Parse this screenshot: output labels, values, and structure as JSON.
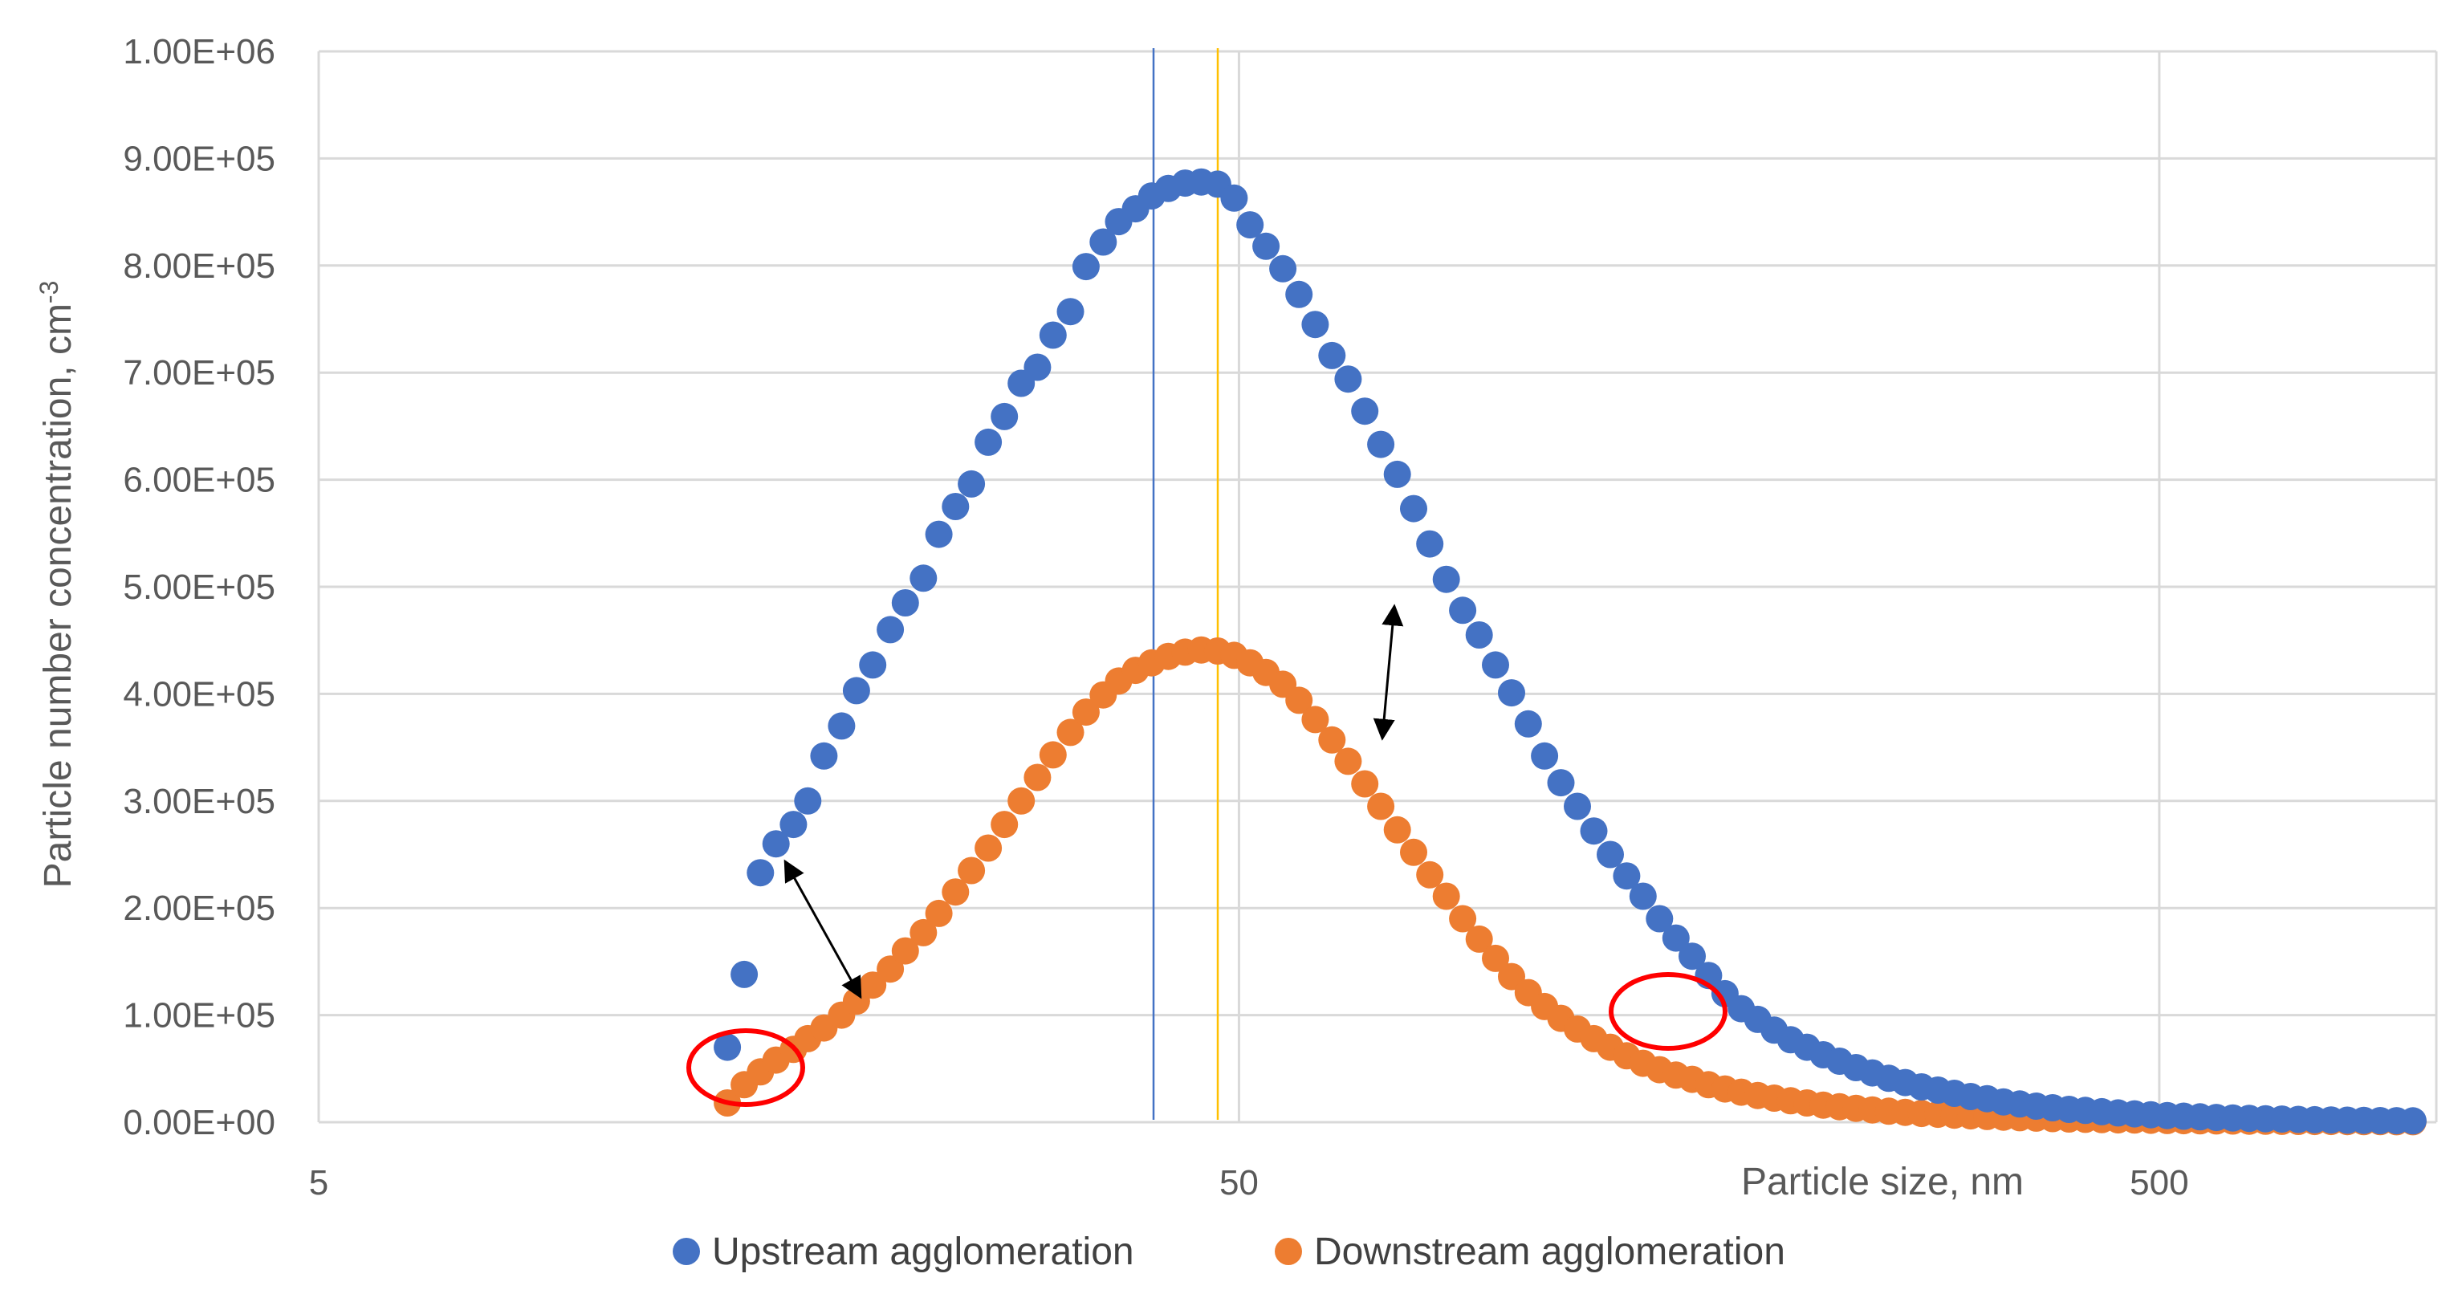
{
  "chart_data": {
    "type": "scatter",
    "xscale": "log",
    "xlim": [
      5,
      1000
    ],
    "ylim": [
      0,
      1000000
    ],
    "grid": true,
    "xlabel": "Particle size, nm",
    "ylabel": "Particle number concentration, cm",
    "ylabel_sup": "-3",
    "x_tick_labels": [
      "5",
      "50",
      "500"
    ],
    "x_ticks": [
      5,
      50,
      500
    ],
    "y_ticks": [
      0,
      100000,
      200000,
      300000,
      400000,
      500000,
      600000,
      700000,
      800000,
      900000,
      1000000
    ],
    "y_tick_labels": [
      "0.00E+00",
      "1.00E+05",
      "2.00E+05",
      "3.00E+05",
      "4.00E+05",
      "5.00E+05",
      "6.00E+05",
      "7.00E+05",
      "8.00E+05",
      "9.00E+05",
      "1.00E+06"
    ],
    "legend_position": "bottom",
    "series": [
      {
        "name": "Upstream agglomeration",
        "color": "#4472C4",
        "x": [
          13.9,
          14.5,
          15.1,
          15.7,
          16.4,
          17.0,
          17.7,
          18.5,
          19.2,
          20.0,
          20.9,
          21.7,
          22.7,
          23.6,
          24.6,
          25.6,
          26.7,
          27.8,
          29.0,
          30.2,
          31.4,
          32.8,
          34.1,
          35.6,
          37.0,
          38.6,
          40.2,
          41.9,
          43.7,
          45.5,
          47.4,
          49.4,
          51.4,
          53.5,
          55.8,
          58.1,
          60.5,
          63.1,
          65.7,
          68.5,
          71.3,
          74.3,
          77.4,
          80.6,
          84.0,
          87.5,
          91.2,
          95.0,
          98.9,
          103.1,
          107.4,
          111.9,
          116.6,
          121.5,
          126.6,
          131.9,
          137.4,
          143.2,
          149.2,
          155.4,
          161.9,
          168.7,
          175.7,
          183.1,
          190.8,
          198.8,
          207.1,
          215.7,
          224.7,
          234.1,
          243.9,
          254.1,
          264.8,
          275.8,
          287.4,
          299.4,
          311.9,
          325.0,
          338.6,
          352.7,
          367.5,
          382.9,
          398.9,
          415.6,
          433.0,
          451.1,
          470.0,
          489.6,
          510.1,
          531.5,
          553.7,
          576.8,
          601.0,
          626.1,
          652.3,
          679.6,
          708.0,
          737.7,
          768.5,
          800.7,
          834.2,
          869.1,
          905.4,
          943.3
        ],
        "y": [
          70000,
          138000,
          233000,
          260000,
          278000,
          300000,
          342000,
          370000,
          403000,
          427000,
          460000,
          485000,
          508000,
          549000,
          575000,
          596000,
          635000,
          659000,
          690000,
          705000,
          735000,
          757000,
          799000,
          822000,
          841000,
          853000,
          865000,
          872000,
          877000,
          878000,
          876000,
          863000,
          838000,
          818000,
          797000,
          773000,
          745000,
          716000,
          694000,
          664000,
          633000,
          605000,
          573000,
          540000,
          507000,
          478000,
          455000,
          427000,
          401000,
          372000,
          342000,
          317000,
          295000,
          272000,
          250000,
          230000,
          211000,
          190000,
          172000,
          155000,
          137000,
          120000,
          106000,
          96000,
          86000,
          77000,
          70000,
          63000,
          57000,
          51000,
          46000,
          41000,
          37000,
          33000,
          30000,
          27000,
          24000,
          22000,
          19000,
          17000,
          15000,
          13500,
          12000,
          11000,
          9800,
          8700,
          7800,
          7000,
          6200,
          5600,
          5000,
          4400,
          4000,
          3600,
          3200,
          2900,
          2600,
          2300,
          2100,
          1900,
          1700,
          1500,
          1400,
          1300
        ]
      },
      {
        "name": "Downstream agglomeration",
        "color": "#ED7D31",
        "x": [
          13.9,
          14.5,
          15.1,
          15.7,
          16.4,
          17.0,
          17.7,
          18.5,
          19.2,
          20.0,
          20.9,
          21.7,
          22.7,
          23.6,
          24.6,
          25.6,
          26.7,
          27.8,
          29.0,
          30.2,
          31.4,
          32.8,
          34.1,
          35.6,
          37.0,
          38.6,
          40.2,
          41.9,
          43.7,
          45.5,
          47.4,
          49.4,
          51.4,
          53.5,
          55.8,
          58.1,
          60.5,
          63.1,
          65.7,
          68.5,
          71.3,
          74.3,
          77.4,
          80.6,
          84.0,
          87.5,
          91.2,
          95.0,
          98.9,
          103.1,
          107.4,
          111.9,
          116.6,
          121.5,
          126.6,
          131.9,
          137.4,
          143.2,
          149.2,
          155.4,
          161.9,
          168.7,
          175.7,
          183.1,
          190.8,
          198.8,
          207.1,
          215.7,
          224.7,
          234.1,
          243.9,
          254.1,
          264.8,
          275.8,
          287.4,
          299.4,
          311.9,
          325.0,
          338.6,
          352.7,
          367.5,
          382.9,
          398.9,
          415.6,
          433.0,
          451.1,
          470.0,
          489.6,
          510.1,
          531.5,
          553.7,
          576.8,
          601.0,
          626.1,
          652.3,
          679.6,
          708.0,
          737.7,
          768.5,
          800.7,
          834.2,
          869.1,
          905.4,
          943.3
        ],
        "y": [
          18000,
          35000,
          47000,
          58000,
          68000,
          78000,
          88000,
          100000,
          113000,
          128000,
          143000,
          160000,
          177000,
          195000,
          215000,
          235000,
          256000,
          278000,
          300000,
          322000,
          343000,
          364000,
          383000,
          399000,
          412000,
          422000,
          429000,
          435000,
          439000,
          441000,
          440000,
          436000,
          429000,
          420000,
          409000,
          394000,
          376000,
          357000,
          337000,
          316000,
          295000,
          273000,
          252000,
          231000,
          211000,
          190000,
          171000,
          153000,
          136000,
          121000,
          108000,
          97000,
          87000,
          78000,
          70000,
          62000,
          55000,
          49000,
          44000,
          40000,
          35000,
          31000,
          28000,
          25000,
          22500,
          20000,
          18000,
          16000,
          14500,
          13000,
          11500,
          10300,
          9200,
          8200,
          7400,
          6600,
          5900,
          5300,
          4700,
          4200,
          3800,
          3400,
          3000,
          2700,
          2400,
          2200,
          2000,
          1800,
          1600,
          1400,
          1300,
          1200,
          1100,
          1000,
          900,
          800,
          750,
          700,
          650,
          600,
          550,
          500,
          480,
          450
        ]
      }
    ]
  }
}
